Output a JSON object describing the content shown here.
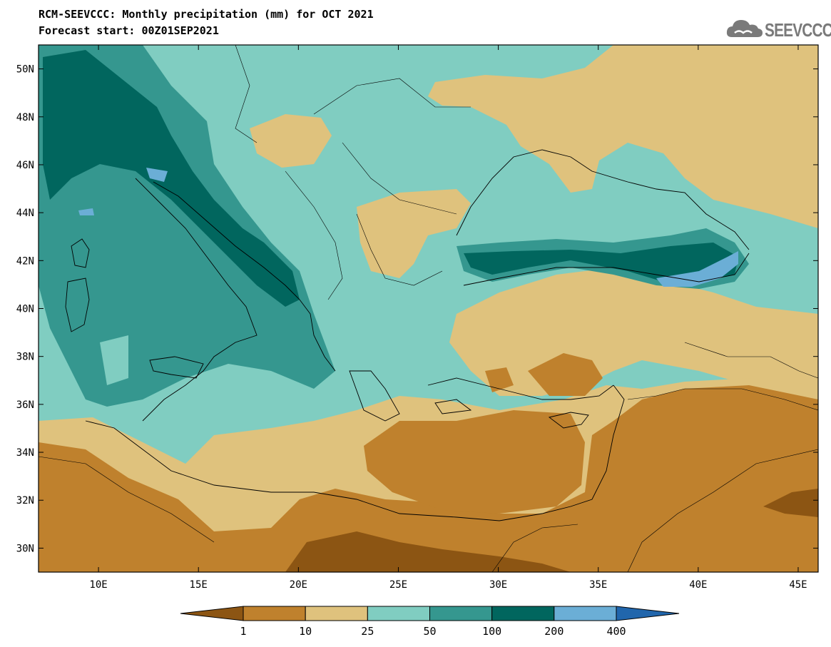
{
  "header": {
    "title": "RCM-SEEVCCC: Monthly precipitation (mm) for OCT 2021",
    "subtitle": "Forecast start: 00Z01SEP2021",
    "logo_text": "SEEVCCC",
    "logo_icon": "cloud-icon"
  },
  "map": {
    "projection": "lat-lon",
    "lon_range": [
      7,
      46
    ],
    "lat_range": [
      29,
      51
    ],
    "y_ticks": [
      {
        "lat": 50,
        "label": "50N"
      },
      {
        "lat": 48,
        "label": "48N"
      },
      {
        "lat": 46,
        "label": "46N"
      },
      {
        "lat": 44,
        "label": "44N"
      },
      {
        "lat": 42,
        "label": "42N"
      },
      {
        "lat": 40,
        "label": "40N"
      },
      {
        "lat": 38,
        "label": "38N"
      },
      {
        "lat": 36,
        "label": "36N"
      },
      {
        "lat": 34,
        "label": "34N"
      },
      {
        "lat": 32,
        "label": "32N"
      },
      {
        "lat": 30,
        "label": "30N"
      }
    ],
    "x_ticks": [
      {
        "lon": 10,
        "label": "10E"
      },
      {
        "lon": 15,
        "label": "15E"
      },
      {
        "lon": 20,
        "label": "20E"
      },
      {
        "lon": 25,
        "label": "25E"
      },
      {
        "lon": 30,
        "label": "30E"
      },
      {
        "lon": 35,
        "label": "35E"
      },
      {
        "lon": 40,
        "label": "40E"
      },
      {
        "lon": 45,
        "label": "45E"
      }
    ]
  },
  "colorbar": {
    "colors": [
      "#8c5513",
      "#bf812d",
      "#dfc27d",
      "#80cdc1",
      "#35978f",
      "#01665e",
      "#6baed6",
      "#2166ac"
    ],
    "labels": [
      "1",
      "10",
      "25",
      "50",
      "100",
      "200",
      "400"
    ]
  }
}
